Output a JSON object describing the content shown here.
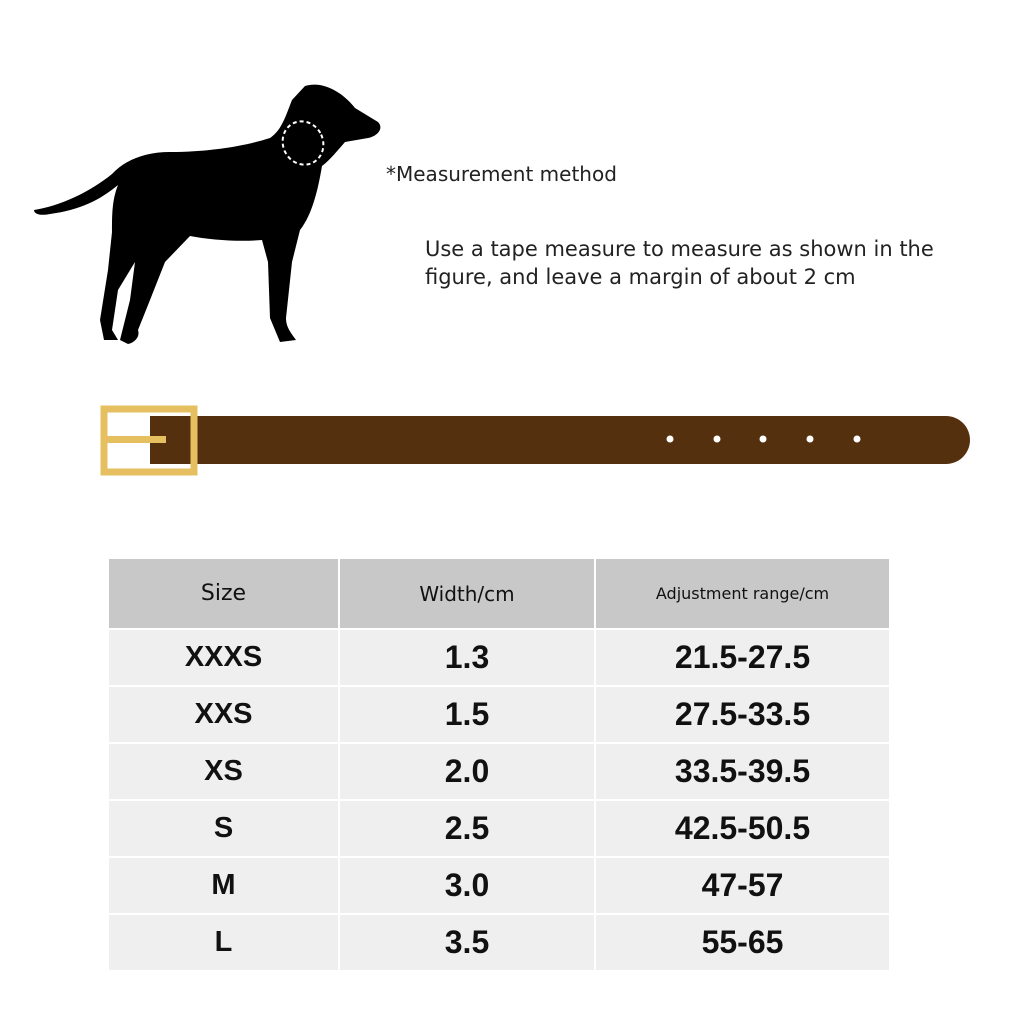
{
  "measurement": {
    "title": "*Measurement method",
    "description": "Use a tape measure to measure as shown in the figure, and leave a margin of about 2 cm"
  },
  "colors": {
    "belt": "#55300f",
    "buckle": "#e6c060",
    "header_bg": "#c8c8c8",
    "row_bg": "#efefef"
  },
  "table": {
    "headers": [
      "Size",
      "Width/cm",
      "Adjustment range/cm"
    ],
    "rows": [
      [
        "XXXS",
        "1.3",
        "21.5-27.5"
      ],
      [
        "XXS",
        "1.5",
        "27.5-33.5"
      ],
      [
        "XS",
        "2.0",
        "33.5-39.5"
      ],
      [
        "S",
        "2.5",
        "42.5-50.5"
      ],
      [
        "M",
        "3.0",
        "47-57"
      ],
      [
        "L",
        "3.5",
        "55-65"
      ]
    ]
  }
}
